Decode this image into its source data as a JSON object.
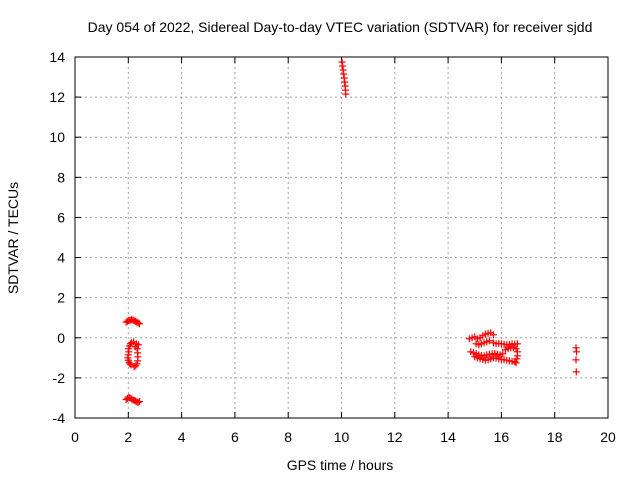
{
  "chart_data": {
    "type": "scatter",
    "title": "Day 054 of 2022, Sidereal Day-to-day VTEC variation (SDTVAR) for receiver sjdd",
    "xlabel": "GPS time / hours",
    "ylabel": "SDTVAR / TECUs",
    "xlim": [
      0,
      20
    ],
    "ylim": [
      -4,
      14
    ],
    "xticks": [
      0,
      2,
      4,
      6,
      8,
      10,
      12,
      14,
      16,
      18,
      20
    ],
    "yticks": [
      -4,
      -2,
      0,
      2,
      4,
      6,
      8,
      10,
      12,
      14
    ],
    "grid": true,
    "marker": "plus",
    "series_color": "#ff0000",
    "series": [
      {
        "points": [
          [
            1.92,
            0.78
          ],
          [
            1.97,
            0.82
          ],
          [
            2.02,
            0.86
          ],
          [
            2.07,
            0.88
          ],
          [
            2.12,
            0.9
          ],
          [
            2.17,
            0.88
          ],
          [
            2.22,
            0.85
          ],
          [
            2.27,
            0.82
          ],
          [
            2.32,
            0.78
          ],
          [
            2.37,
            0.74
          ],
          [
            2.42,
            0.7
          ],
          [
            2.0,
            -0.55
          ],
          [
            2.02,
            -0.7
          ],
          [
            2.0,
            -0.85
          ],
          [
            1.98,
            -1.0
          ],
          [
            2.0,
            -1.12
          ],
          [
            2.03,
            -1.22
          ],
          [
            2.06,
            -1.3
          ],
          [
            2.1,
            -1.35
          ],
          [
            2.05,
            -0.4
          ],
          [
            2.08,
            -0.3
          ],
          [
            2.12,
            -0.25
          ],
          [
            2.2,
            -0.2
          ],
          [
            2.26,
            -0.45
          ],
          [
            2.3,
            -0.3
          ],
          [
            2.33,
            -0.55
          ],
          [
            2.35,
            -0.75
          ],
          [
            2.36,
            -0.95
          ],
          [
            2.35,
            -1.15
          ],
          [
            2.33,
            -1.3
          ],
          [
            2.28,
            -1.4
          ],
          [
            2.22,
            -1.45
          ],
          [
            2.38,
            -0.35
          ],
          [
            1.92,
            -3.08
          ],
          [
            1.97,
            -3.02
          ],
          [
            2.02,
            -2.98
          ],
          [
            2.07,
            -3.0
          ],
          [
            2.12,
            -3.05
          ],
          [
            2.17,
            -3.1
          ],
          [
            2.22,
            -3.12
          ],
          [
            2.27,
            -3.15
          ],
          [
            2.32,
            -3.2
          ],
          [
            2.37,
            -3.22
          ],
          [
            2.42,
            -3.18
          ],
          [
            10.02,
            13.75
          ],
          [
            10.04,
            13.55
          ],
          [
            10.06,
            13.35
          ],
          [
            10.08,
            13.15
          ],
          [
            10.1,
            12.95
          ],
          [
            10.12,
            12.75
          ],
          [
            10.14,
            12.55
          ],
          [
            10.15,
            12.35
          ],
          [
            10.16,
            12.15
          ],
          [
            14.8,
            -0.05
          ],
          [
            14.9,
            0.0
          ],
          [
            15.0,
            0.05
          ],
          [
            15.1,
            -0.05
          ],
          [
            15.2,
            0.0
          ],
          [
            15.3,
            0.1
          ],
          [
            15.4,
            0.18
          ],
          [
            15.5,
            0.22
          ],
          [
            15.6,
            0.25
          ],
          [
            15.7,
            0.15
          ],
          [
            15.05,
            -0.3
          ],
          [
            15.15,
            -0.35
          ],
          [
            15.25,
            -0.3
          ],
          [
            15.35,
            -0.25
          ],
          [
            15.45,
            -0.2
          ],
          [
            15.55,
            -0.15
          ],
          [
            15.7,
            -0.25
          ],
          [
            15.8,
            -0.3
          ],
          [
            15.9,
            -0.28
          ],
          [
            16.0,
            -0.3
          ],
          [
            16.1,
            -0.32
          ],
          [
            16.2,
            -0.35
          ],
          [
            16.3,
            -0.33
          ],
          [
            16.4,
            -0.3
          ],
          [
            16.5,
            -0.32
          ],
          [
            16.6,
            -0.3
          ],
          [
            14.85,
            -0.7
          ],
          [
            14.95,
            -0.75
          ],
          [
            15.05,
            -0.78
          ],
          [
            15.15,
            -0.85
          ],
          [
            15.25,
            -0.88
          ],
          [
            15.35,
            -0.9
          ],
          [
            15.45,
            -0.85
          ],
          [
            15.55,
            -0.82
          ],
          [
            15.65,
            -0.8
          ],
          [
            15.75,
            -0.78
          ],
          [
            15.85,
            -0.82
          ],
          [
            15.95,
            -0.85
          ],
          [
            16.05,
            -0.8
          ],
          [
            15.0,
            -0.95
          ],
          [
            15.1,
            -1.0
          ],
          [
            15.2,
            -1.05
          ],
          [
            15.3,
            -1.08
          ],
          [
            15.4,
            -1.12
          ],
          [
            15.5,
            -1.1
          ],
          [
            15.6,
            -1.05
          ],
          [
            15.7,
            -1.0
          ],
          [
            15.8,
            -1.02
          ],
          [
            15.9,
            -1.05
          ],
          [
            16.0,
            -1.08
          ],
          [
            16.1,
            -1.1
          ],
          [
            16.2,
            -1.12
          ],
          [
            16.3,
            -1.15
          ],
          [
            16.4,
            -1.18
          ],
          [
            16.5,
            -1.2
          ],
          [
            16.55,
            -1.25
          ],
          [
            16.15,
            -0.6
          ],
          [
            16.25,
            -0.55
          ],
          [
            16.35,
            -0.5
          ],
          [
            16.45,
            -0.5
          ],
          [
            16.55,
            -0.55
          ],
          [
            16.6,
            -0.7
          ],
          [
            16.6,
            -0.9
          ],
          [
            16.58,
            -1.05
          ],
          [
            18.8,
            -0.5
          ],
          [
            18.82,
            -0.7
          ],
          [
            18.8,
            -1.1
          ],
          [
            18.81,
            -1.7
          ]
        ]
      }
    ]
  }
}
